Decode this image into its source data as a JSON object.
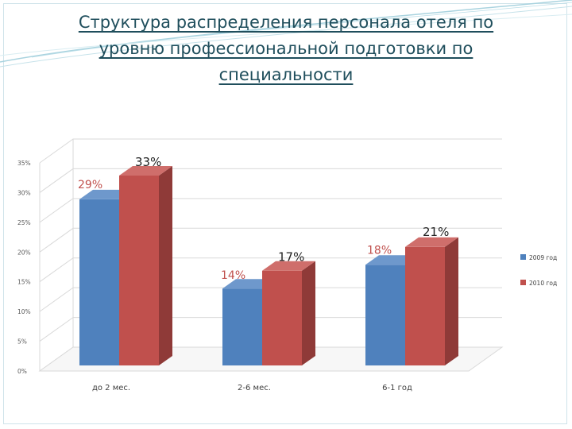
{
  "title": "Структура распределения персонала отеля по уровню профессиональной подготовки по специальности",
  "colors": {
    "series_2009": "#4f81bd",
    "series_2010": "#c0504d",
    "title_text": "#1f4e5c"
  },
  "chart_data": {
    "type": "bar",
    "categories": [
      "до 2 мес.",
      "2-6 мес.",
      "6-1 год"
    ],
    "series": [
      {
        "name": "2009 год",
        "values": [
          29,
          14,
          18
        ],
        "labels": [
          "29%",
          "14%",
          "18%"
        ]
      },
      {
        "name": "2010 год",
        "values": [
          33,
          17,
          21
        ],
        "labels": [
          "33%",
          "17%",
          "21%"
        ]
      }
    ],
    "y_ticks": [
      "0%",
      "5%",
      "10%",
      "15%",
      "20%",
      "25%",
      "30%",
      "35%"
    ],
    "ylim": [
      0,
      35
    ],
    "grid": true,
    "legend_position": "right",
    "style": "3d-clustered-column"
  }
}
